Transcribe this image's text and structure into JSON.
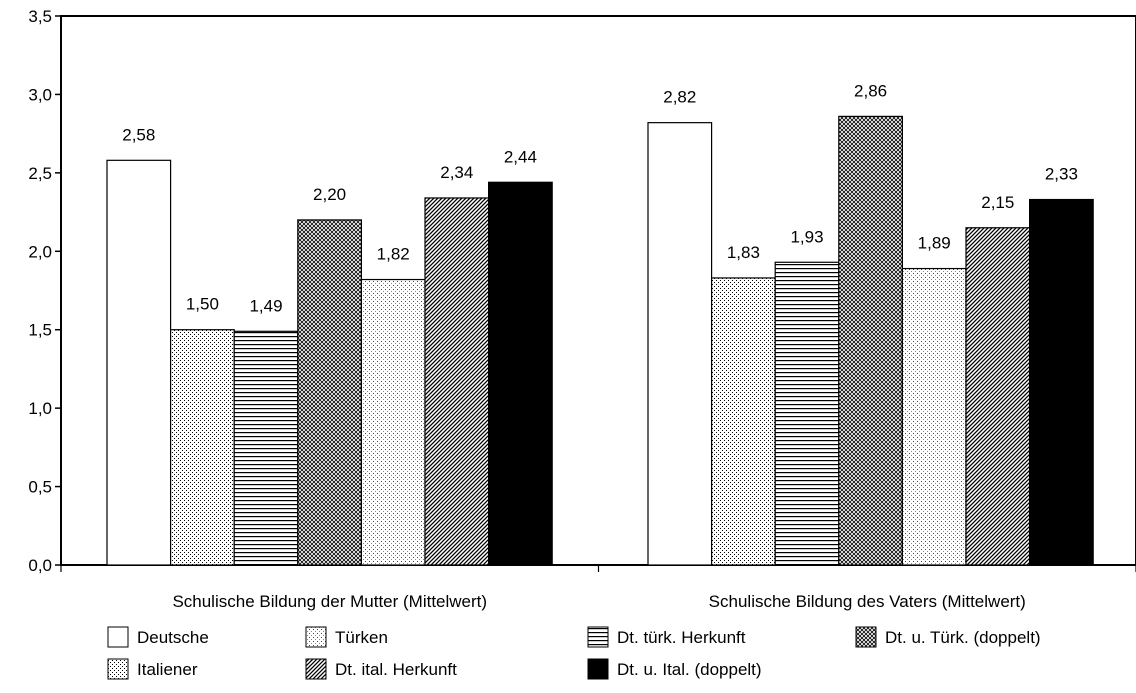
{
  "chart_data": {
    "type": "bar",
    "title": "",
    "xlabel": "",
    "ylabel": "",
    "ylim": [
      0,
      3.5
    ],
    "yticks": [
      "0,0",
      "0,5",
      "1,0",
      "1,5",
      "2,0",
      "2,5",
      "3,0",
      "3,5"
    ],
    "ytick_values": [
      0,
      0.5,
      1.0,
      1.5,
      2.0,
      2.5,
      3.0,
      3.5
    ],
    "grid": false,
    "legend_position": "bottom",
    "categories": [
      "Schulische Bildung der Mutter (Mittelwert)",
      "Schulische Bildung des Vaters (Mittelwert)"
    ],
    "series": [
      {
        "name": "Deutsche",
        "pattern": "white",
        "values": [
          2.58,
          2.82
        ],
        "labels": [
          "2,58",
          "2,82"
        ]
      },
      {
        "name": "Italiener",
        "pattern": "dots",
        "values": [
          1.5,
          1.83
        ],
        "labels": [
          "1,50",
          "1,83"
        ]
      },
      {
        "name": "Dt. türk. Herkunft",
        "pattern": "hlines",
        "values": [
          1.49,
          1.93
        ],
        "labels": [
          "1,49",
          "1,93"
        ]
      },
      {
        "name": "Dt. u. Türk. (doppelt)",
        "pattern": "crosshatch",
        "values": [
          2.2,
          2.86
        ],
        "labels": [
          "2,20",
          "2,86"
        ]
      },
      {
        "name": "Türken",
        "pattern": "lightdots",
        "values": [
          1.82,
          1.89
        ],
        "labels": [
          "1,82",
          "1,89"
        ]
      },
      {
        "name": "Dt. ital. Herkunft",
        "pattern": "diagonal",
        "values": [
          2.34,
          2.15
        ],
        "labels": [
          "2,34",
          "2,15"
        ]
      },
      {
        "name": "Dt. u. Ital. (doppelt)",
        "pattern": "black",
        "values": [
          2.44,
          2.33
        ],
        "labels": [
          "2,44",
          "2,33"
        ]
      }
    ],
    "legend_order": [
      "Deutsche",
      "Türken",
      "Dt. türk. Herkunft",
      "Dt. u. Türk. (doppelt)",
      "Italiener",
      "Dt. ital. Herkunft",
      "Dt. u. Ital. (doppelt)"
    ]
  }
}
